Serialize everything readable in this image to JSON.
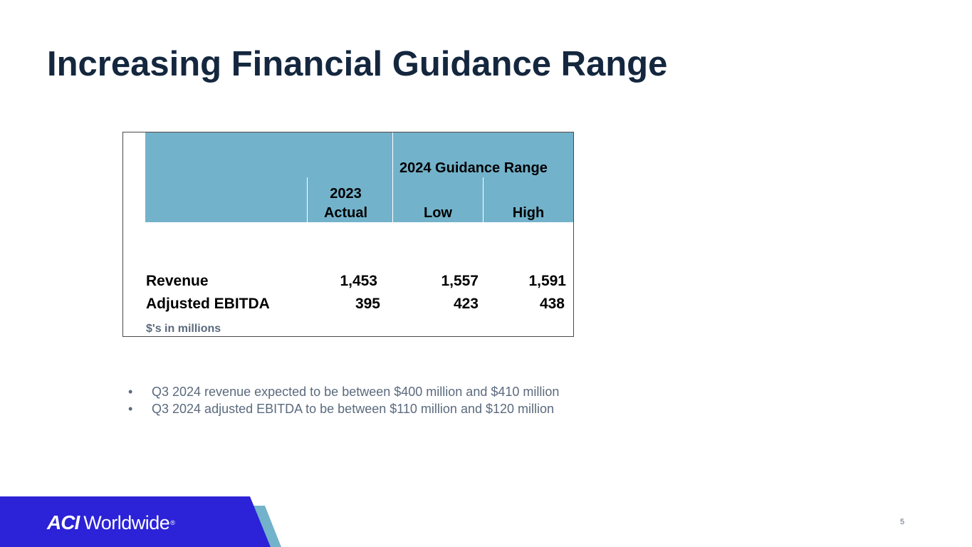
{
  "slide": {
    "title": "Increasing Financial Guidance Range",
    "page_number": "5"
  },
  "table": {
    "guidance_header": "2024 Guidance Range",
    "col_actual_line1": "2023",
    "col_actual_line2": "Actual",
    "col_low": "Low",
    "col_high": "High",
    "rows": [
      {
        "label": "Revenue",
        "actual": "1,453",
        "low": "1,557",
        "high": "1,591"
      },
      {
        "label": "Adjusted EBITDA",
        "actual": "395",
        "low": "423",
        "high": "438"
      }
    ],
    "note": "$'s in millions"
  },
  "bullets": [
    "Q3 2024 revenue expected to be between $400 million and $410 million",
    "Q3 2024 adjusted EBITDA to be between $110 million and $120 million"
  ],
  "logo": {
    "mark": "ACI",
    "word": "Worldwide",
    "registered": "®"
  },
  "colors": {
    "title": "#14273e",
    "header_fill": "#73b2cb",
    "footer_blue": "#2c22d7",
    "footer_accent": "#73b2cb"
  }
}
